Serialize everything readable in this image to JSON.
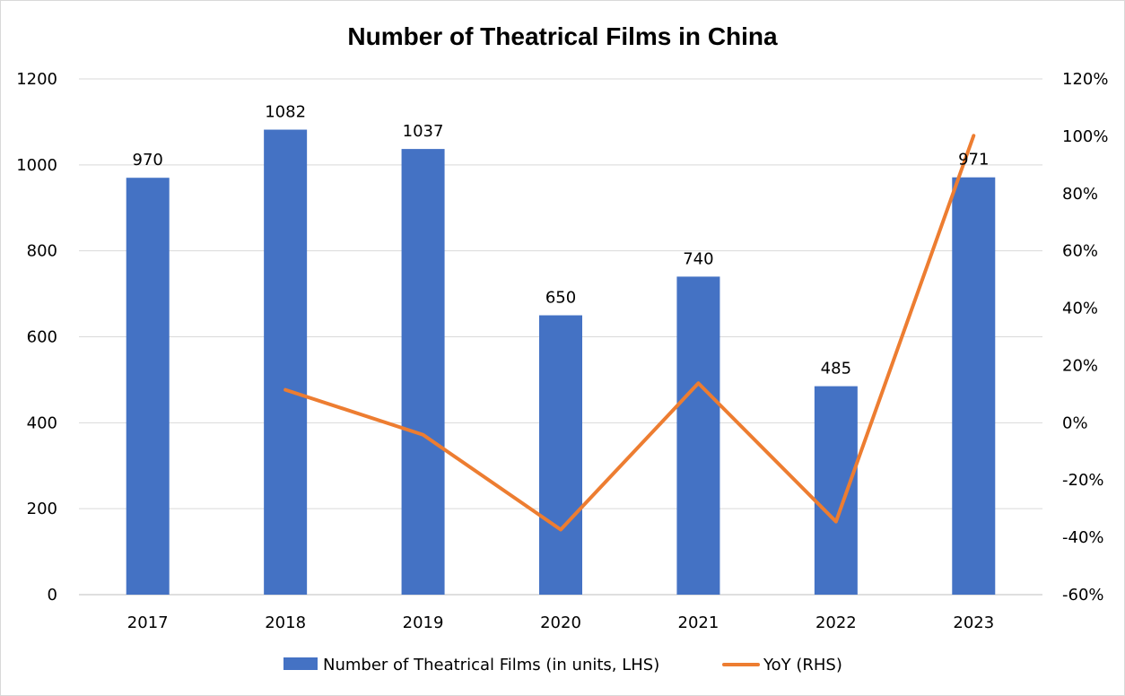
{
  "chart_data": {
    "type": "bar",
    "title": "Number of Theatrical Films in China",
    "categories": [
      "2017",
      "2018",
      "2019",
      "2020",
      "2021",
      "2022",
      "2023"
    ],
    "series": [
      {
        "name": "Number of Theatrical Films (in units, LHS)",
        "type": "bar",
        "axis": "left",
        "color": "#4472c4",
        "values": [
          970,
          1082,
          1037,
          650,
          740,
          485,
          971
        ]
      },
      {
        "name": "YoY (RHS)",
        "type": "line",
        "axis": "right",
        "color": "#ed7d31",
        "values": [
          null,
          11.5,
          -4.2,
          -37.3,
          13.8,
          -34.5,
          100.2
        ]
      }
    ],
    "y_left": {
      "range": [
        0,
        1200
      ],
      "ticks": [
        0,
        200,
        400,
        600,
        800,
        1000,
        1200
      ],
      "tick_labels": [
        "0",
        "200",
        "400",
        "600",
        "800",
        "1000",
        "1200"
      ]
    },
    "y_right": {
      "range": [
        -60,
        120
      ],
      "ticks": [
        -60,
        -40,
        -20,
        0,
        20,
        40,
        60,
        80,
        100,
        120
      ],
      "tick_labels": [
        "-60%",
        "-40%",
        "-20%",
        "0%",
        "20%",
        "40%",
        "60%",
        "80%",
        "100%",
        "120%"
      ]
    },
    "data_labels": [
      "970",
      "1082",
      "1037",
      "650",
      "740",
      "485",
      "971"
    ],
    "grid": true,
    "legend_position": "bottom"
  }
}
